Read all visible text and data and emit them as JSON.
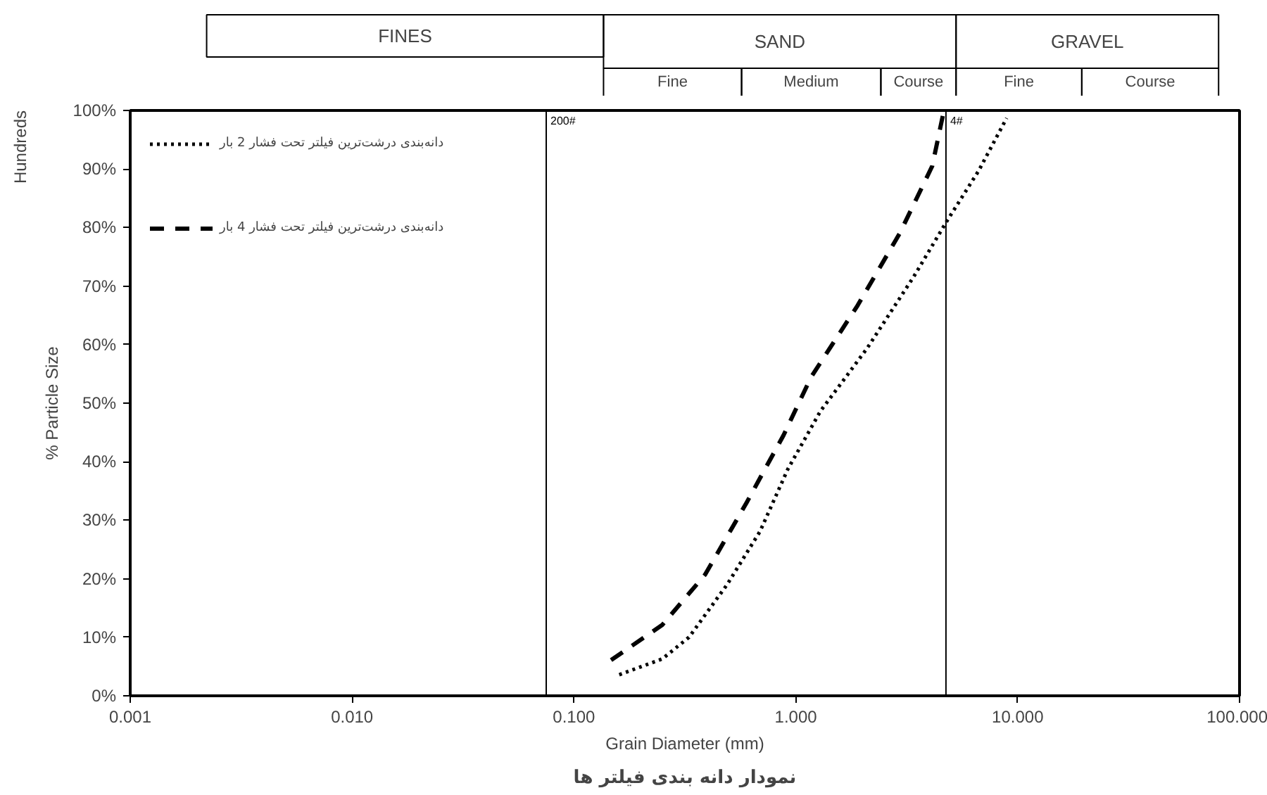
{
  "chart_data": {
    "type": "line",
    "title": "نمودار دانه بندی فیلتر ها",
    "xlabel": "Grain Diameter (mm)",
    "ylabel": "% Particle Size",
    "log": "x",
    "xlim": [
      0.001,
      100
    ],
    "xticks": [
      {
        "value": 0.001,
        "label": "0.001"
      },
      {
        "value": 0.01,
        "label": "0.010"
      },
      {
        "value": 0.1,
        "label": "0.100"
      },
      {
        "value": 1,
        "label": "1.000"
      },
      {
        "value": 10,
        "label": "10.000"
      },
      {
        "value": 100,
        "label": "100.000"
      }
    ],
    "ylim": [
      0,
      100
    ],
    "yticks": [
      {
        "value": 0,
        "label": "0%"
      },
      {
        "value": 10,
        "label": "10%"
      },
      {
        "value": 20,
        "label": "20%"
      },
      {
        "value": 30,
        "label": "30%"
      },
      {
        "value": 40,
        "label": "40%"
      },
      {
        "value": 50,
        "label": "50%"
      },
      {
        "value": 60,
        "label": "60%"
      },
      {
        "value": 70,
        "label": "70%"
      },
      {
        "value": 80,
        "label": "80%"
      },
      {
        "value": 90,
        "label": "90%"
      },
      {
        "value": 100,
        "label": "100%"
      }
    ],
    "legend": "top left",
    "series": [
      {
        "name": "دانه‌بندی درشت‌ترین فیلتر تحت فشار 2 بار",
        "color": "#000000",
        "line_style": "dotted",
        "x": [
          0.16,
          0.25,
          0.33,
          0.49,
          0.69,
          0.92,
          1.29,
          2.09,
          3.4,
          4.76,
          6.67,
          8.92
        ],
        "values": [
          3.6,
          6.3,
          10,
          19,
          28.1,
          38.7,
          48.6,
          59.3,
          71.6,
          80.9,
          89.7,
          98.7
        ]
      },
      {
        "name": "دانه‌بندی درشت‌ترین فیلتر تحت فشار 4 بار",
        "color": "#000000",
        "line_style": "dashed",
        "x": [
          0.147,
          0.25,
          0.39,
          0.6,
          0.88,
          1.17,
          1.9,
          2.94,
          4.12,
          4.65
        ],
        "values": [
          6.1,
          12.1,
          20.7,
          33,
          44.5,
          54.4,
          66.7,
          79,
          90.5,
          100
        ]
      }
    ],
    "ref_lines": [
      {
        "axis": "x",
        "value": 0.075,
        "color": "#000000"
      },
      {
        "axis": "x",
        "value": 4.75,
        "color": "#000000"
      }
    ],
    "annotations": [
      "FINES",
      "SAND",
      "GRAVEL",
      "Fine",
      "Medium",
      "Course",
      "Fine",
      "Course",
      "Hundreds",
      {
        "text": "200#",
        "x": 0.075,
        "y": 100
      },
      {
        "text": "4#",
        "x": 4.75,
        "y": 100
      }
    ]
  }
}
